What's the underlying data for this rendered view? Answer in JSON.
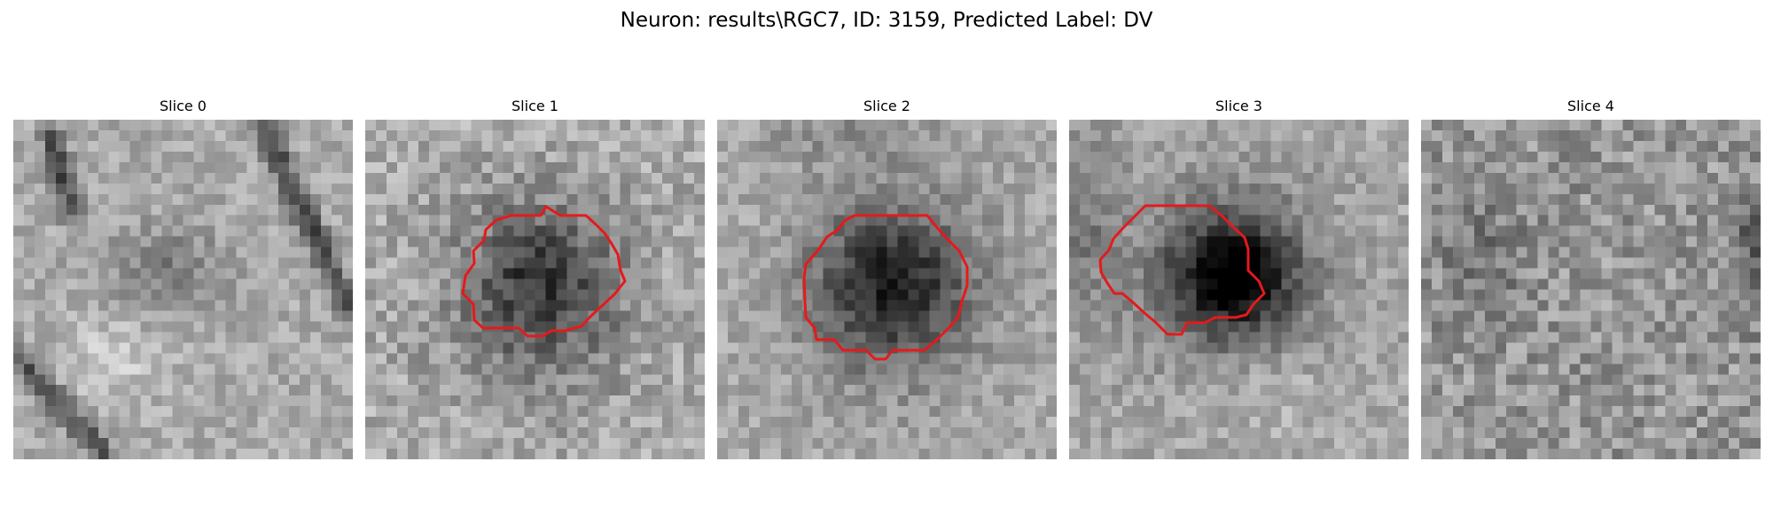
{
  "figure": {
    "title": "Neuron: results\\RGC7, ID: 3159, Predicted Label: DV"
  },
  "slices": [
    {
      "title": "Slice 0",
      "has_contour": false,
      "contour_color": "#e41a1c"
    },
    {
      "title": "Slice 1",
      "has_contour": true,
      "contour_color": "#e41a1c"
    },
    {
      "title": "Slice 2",
      "has_contour": true,
      "contour_color": "#e41a1c"
    },
    {
      "title": "Slice 3",
      "has_contour": true,
      "contour_color": "#e41a1c"
    },
    {
      "title": "Slice 4",
      "has_contour": false,
      "contour_color": "#e41a1c"
    }
  ]
}
